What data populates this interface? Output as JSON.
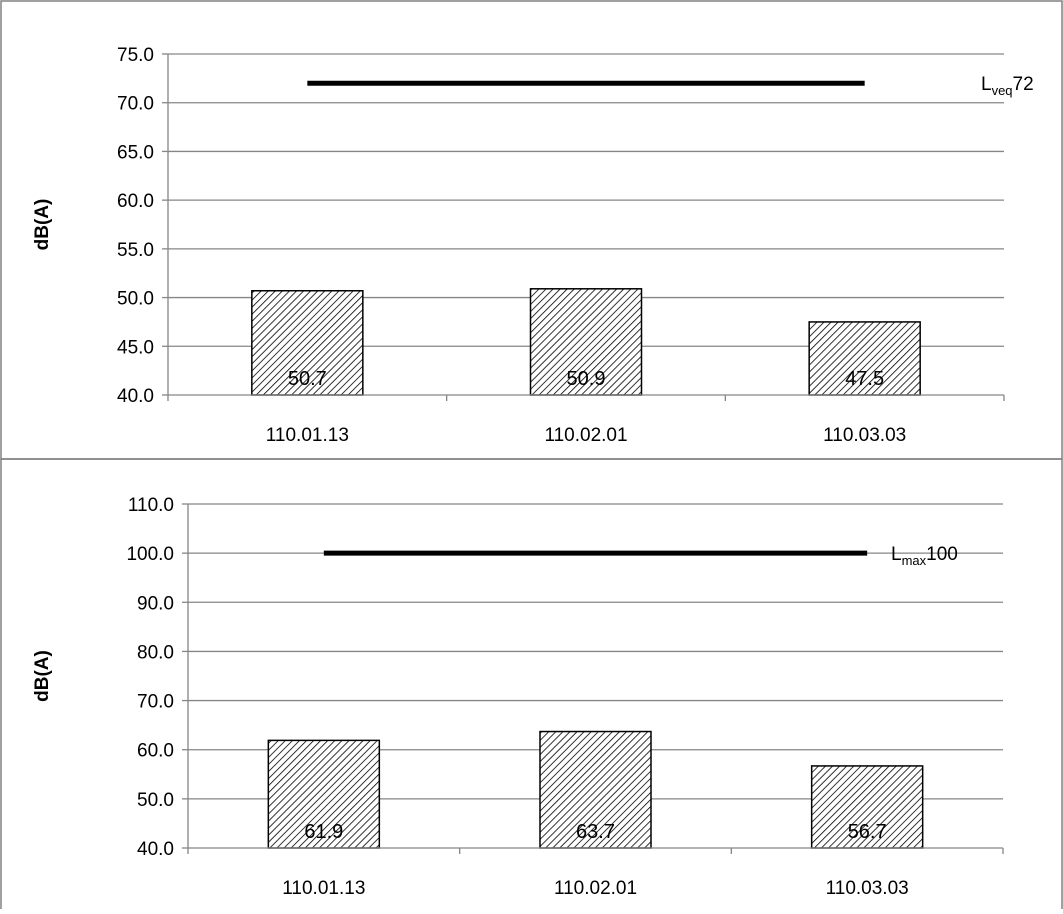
{
  "colors": {
    "frame": "#808080",
    "grid": "#868686",
    "axis": "#868686",
    "bar_fill": "#ffffff",
    "bar_hatch": "#000000",
    "bar_edge": "#000000",
    "limit_line": "#000000",
    "text": "#000000"
  },
  "chart_data": [
    {
      "type": "bar",
      "title": "",
      "xlabel": "",
      "ylabel": "dB(A)",
      "ylim": [
        40,
        75
      ],
      "ytick_step": 5,
      "ytick_labels": [
        "40.0",
        "45.0",
        "50.0",
        "55.0",
        "60.0",
        "65.0",
        "70.0",
        "75.0"
      ],
      "grid": true,
      "bar_pattern": "diagonal-hatch",
      "categories": [
        "110.01.13",
        "110.02.01",
        "110.03.03"
      ],
      "values": [
        50.7,
        50.9,
        47.5
      ],
      "value_labels": [
        "50.7",
        "50.9",
        "47.5"
      ],
      "reference_line": {
        "value": 72,
        "label_main": "L",
        "label_sub": "veq",
        "label_value": "72",
        "from_category": "110.01.13",
        "to_category": "110.03.03"
      }
    },
    {
      "type": "bar",
      "title": "",
      "xlabel": "",
      "ylabel": "dB(A)",
      "ylim": [
        40,
        110
      ],
      "ytick_step": 10,
      "ytick_labels": [
        "40.0",
        "50.0",
        "60.0",
        "70.0",
        "80.0",
        "90.0",
        "100.0",
        "110.0"
      ],
      "grid": true,
      "bar_pattern": "diagonal-hatch",
      "categories": [
        "110.01.13",
        "110.02.01",
        "110.03.03"
      ],
      "values": [
        61.9,
        63.7,
        56.7
      ],
      "value_labels": [
        "61.9",
        "63.7",
        "56.7"
      ],
      "reference_line": {
        "value": 100,
        "label_main": "L",
        "label_sub": "max",
        "label_value": "100",
        "from_category": "110.01.13",
        "to_category": "110.03.03"
      }
    }
  ]
}
